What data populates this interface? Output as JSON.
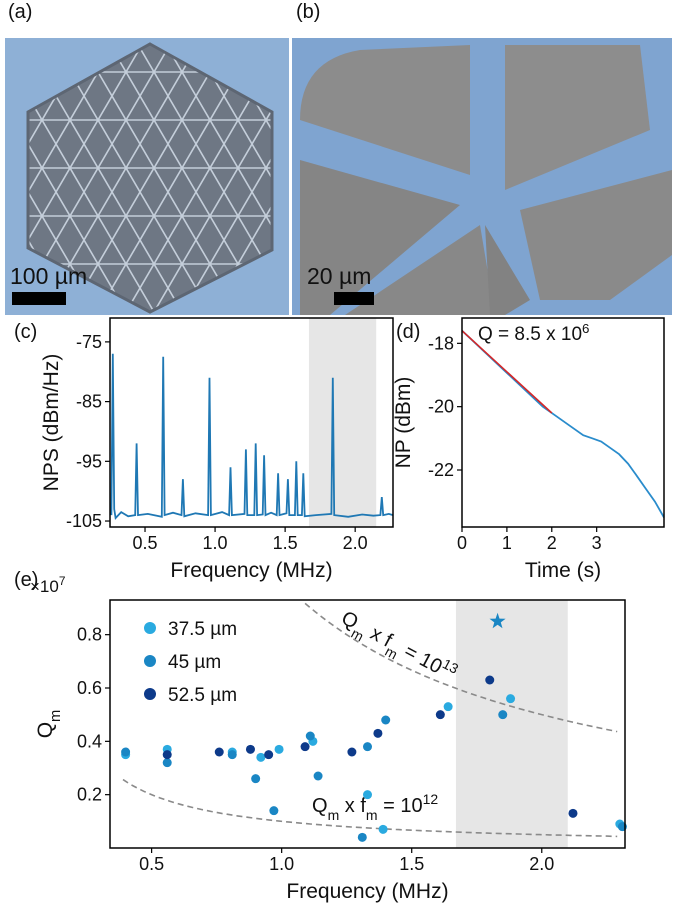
{
  "images": [
    {
      "label": "(a)",
      "scale": "100 µm"
    },
    {
      "label": "(b)",
      "scale": "20 µm"
    }
  ],
  "chart_data": [
    {
      "type": "line",
      "panel_label": "(c)",
      "xlabel": "Frequency (MHz)",
      "ylabel": "NPS (dBm/Hz)",
      "xlim": [
        0.25,
        2.27
      ],
      "ylim": [
        -106,
        -71
      ],
      "xticks": [
        0.5,
        {
          "value": 1,
          "label": "1.0"
        },
        1.5,
        {
          "value": 2,
          "label": "2.0"
        }
      ],
      "yticks": [
        -75,
        -85,
        -95,
        -105
      ],
      "shade": [
        1.67,
        2.15
      ],
      "x": [
        0.26,
        0.27,
        0.28,
        0.29,
        0.33,
        0.38,
        0.43,
        0.44,
        0.45,
        0.52,
        0.62,
        0.63,
        0.64,
        0.7,
        0.76,
        0.77,
        0.78,
        0.86,
        0.95,
        0.96,
        0.97,
        1.05,
        1.1,
        1.11,
        1.12,
        1.21,
        1.22,
        1.23,
        1.28,
        1.29,
        1.3,
        1.34,
        1.35,
        1.36,
        1.4,
        1.44,
        1.45,
        1.46,
        1.51,
        1.52,
        1.53,
        1.57,
        1.58,
        1.59,
        1.62,
        1.63,
        1.64,
        1.72,
        1.83,
        1.84,
        1.85,
        1.95,
        2.05,
        2.13,
        2.18,
        2.19,
        2.2,
        2.24,
        2.27
      ],
      "series": [
        {
          "color": "#1f78b4",
          "values": [
            -104,
            -77,
            -103,
            -104.5,
            -103.5,
            -104.2,
            -104,
            -92,
            -104,
            -103.8,
            -104.3,
            -77.5,
            -104,
            -103.6,
            -104,
            -98,
            -104.2,
            -103.7,
            -104,
            -81,
            -104,
            -103.5,
            -104,
            -96,
            -104,
            -103.8,
            -93,
            -104,
            -104,
            -92,
            -104,
            -103.9,
            -94,
            -104,
            -103.6,
            -104,
            -97,
            -104,
            -103.7,
            -98,
            -104,
            -104,
            -95,
            -104,
            -104,
            -97,
            -104.2,
            -104,
            -103.8,
            -81,
            -104,
            -104.3,
            -103.9,
            -104.1,
            -104,
            -101,
            -104,
            -103.8,
            -104
          ]
        }
      ]
    },
    {
      "type": "line",
      "panel_label": "(d)",
      "xlabel": "Time (s)",
      "ylabel": "NP (dBm)",
      "annotation": [
        {
          "text": "Q =  8.5 x 10"
        },
        {
          "sup": "6"
        }
      ],
      "xlim": [
        0,
        4.5
      ],
      "ylim": [
        -23.8,
        -17.2
      ],
      "xticks": [
        0,
        1,
        2,
        3
      ],
      "yticks": [
        -18,
        -20,
        -22
      ],
      "series": [
        {
          "color": "#2a8ccc",
          "x": [
            0,
            0.3,
            0.6,
            0.9,
            1.2,
            1.5,
            1.8,
            2.1,
            2.4,
            2.7,
            2.9,
            3.1,
            3.3,
            3.5,
            3.7,
            3.9,
            4.1,
            4.3,
            4.5
          ],
          "values": [
            -17.6,
            -18.0,
            -18.4,
            -18.8,
            -19.2,
            -19.6,
            -20.0,
            -20.3,
            -20.6,
            -20.9,
            -21.0,
            -21.1,
            -21.3,
            -21.5,
            -21.8,
            -22.2,
            -22.6,
            -23.0,
            -23.5
          ]
        },
        {
          "color": "#d62728",
          "x": [
            0,
            2.0
          ],
          "values": [
            -17.6,
            -20.2
          ]
        }
      ]
    },
    {
      "type": "scatter",
      "panel_label": "(e)",
      "xlabel": "Frequency (MHz)",
      "ylabel": [
        {
          "text": "Q"
        },
        {
          "sub": "m"
        }
      ],
      "yscale_label": [
        {
          "text": "×10"
        },
        {
          "sup": "7"
        }
      ],
      "xlim": [
        0.34,
        2.32
      ],
      "ylim": [
        0,
        0.93
      ],
      "xticks": [
        0.5,
        {
          "value": 1,
          "label": "1.0"
        },
        1.5,
        {
          "value": 2,
          "label": "2.0"
        }
      ],
      "yticks": [
        0.2,
        0.4,
        0.6,
        0.8
      ],
      "shade": [
        1.67,
        2.1
      ],
      "series": [
        {
          "name": "37.5 µm",
          "color": "#2aaae0",
          "x": [
            0.4,
            0.56,
            0.81,
            0.92,
            0.99,
            1.12,
            1.33,
            1.39,
            1.64,
            1.88,
            2.3
          ],
          "values": [
            0.35,
            0.37,
            0.36,
            0.34,
            0.37,
            0.4,
            0.2,
            0.07,
            0.53,
            0.56,
            0.09
          ]
        },
        {
          "name": "45 µm",
          "color": "#1a86c4",
          "x": [
            0.4,
            0.56,
            0.81,
            0.9,
            0.97,
            1.11,
            1.14,
            1.33,
            1.4,
            1.31,
            1.85,
            2.31
          ],
          "values": [
            0.36,
            0.32,
            0.35,
            0.26,
            0.14,
            0.42,
            0.27,
            0.38,
            0.48,
            0.04,
            0.5,
            0.08
          ]
        },
        {
          "name": "52.5 µm",
          "color": "#0d3a8a",
          "x": [
            0.56,
            0.76,
            0.88,
            0.95,
            1.09,
            1.27,
            1.37,
            1.61,
            1.8,
            2.12
          ],
          "values": [
            0.35,
            0.36,
            0.37,
            0.35,
            0.38,
            0.36,
            0.43,
            0.5,
            0.63,
            0.13
          ]
        }
      ],
      "star": {
        "x": 1.83,
        "value": 0.85,
        "color": "#1a86c4"
      },
      "curves": [
        {
          "product": 1,
          "label": [
            {
              "text": "Q"
            },
            {
              "sub": "m"
            },
            {
              "text": " x f"
            },
            {
              "sub": "m"
            },
            {
              "text": " = 10"
            },
            {
              "sup": "13"
            }
          ]
        },
        {
          "product": 0.1,
          "label": [
            {
              "text": "Q"
            },
            {
              "sub": "m"
            },
            {
              "text": " x f"
            },
            {
              "sub": "m"
            },
            {
              "text": " = 10"
            },
            {
              "sup": "12"
            }
          ]
        }
      ]
    }
  ]
}
